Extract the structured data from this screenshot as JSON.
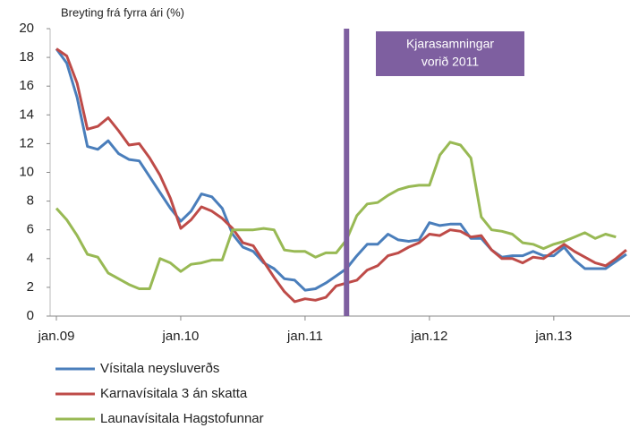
{
  "chart_data": {
    "type": "line",
    "title": "Breyting  frá fyrra ári (%)",
    "categories": [
      "jan.09",
      null,
      null,
      null,
      null,
      null,
      null,
      null,
      null,
      null,
      null,
      null,
      "jan.10",
      null,
      null,
      null,
      null,
      null,
      null,
      null,
      null,
      null,
      null,
      null,
      "jan.11",
      null,
      null,
      null,
      null,
      null,
      null,
      null,
      null,
      null,
      null,
      null,
      "jan.12",
      null,
      null,
      null,
      null,
      null,
      null,
      null,
      null,
      null,
      null,
      null,
      "jan.13",
      null,
      null,
      null,
      null,
      null,
      null,
      null
    ],
    "series": [
      {
        "name": "Vísitala neysluverðs",
        "color": "#4a7ebb",
        "values": [
          18.6,
          17.6,
          15.2,
          11.8,
          11.6,
          12.2,
          11.3,
          10.9,
          10.8,
          9.7,
          8.6,
          7.5,
          6.6,
          7.3,
          8.5,
          8.3,
          7.5,
          5.7,
          4.8,
          4.5,
          3.7,
          3.3,
          2.6,
          2.5,
          1.8,
          1.9,
          2.3,
          2.8,
          3.3,
          4.2,
          5.0,
          5.0,
          5.7,
          5.3,
          5.2,
          5.3,
          6.5,
          6.3,
          6.4,
          6.4,
          5.4,
          5.4,
          4.6,
          4.1,
          4.2,
          4.2,
          4.5,
          4.2,
          4.2,
          4.8,
          3.9,
          3.3,
          3.3,
          3.3,
          3.8,
          4.3
        ]
      },
      {
        "name": "Karnavísitala 3 án skatta",
        "color": "#be4b48",
        "values": [
          18.6,
          18.1,
          16.2,
          13.0,
          13.2,
          13.8,
          12.9,
          11.9,
          12.0,
          11.0,
          9.8,
          8.2,
          6.1,
          6.7,
          7.6,
          7.3,
          6.8,
          6.1,
          5.1,
          4.9,
          3.8,
          2.7,
          1.7,
          1.0,
          1.2,
          1.1,
          1.3,
          2.1,
          2.3,
          2.5,
          3.2,
          3.5,
          4.2,
          4.4,
          4.8,
          5.1,
          5.7,
          5.6,
          6.0,
          5.9,
          5.5,
          5.6,
          4.6,
          4.0,
          4.0,
          3.7,
          4.1,
          4.0,
          4.5,
          5.0,
          4.5,
          4.1,
          3.7,
          3.5,
          4.0,
          4.6
        ]
      },
      {
        "name": "Launavísitala Hagstofunnar",
        "color": "#98b954",
        "values": [
          7.5,
          6.7,
          5.6,
          4.3,
          4.1,
          3.0,
          2.6,
          2.2,
          1.9,
          1.9,
          4.0,
          3.7,
          3.1,
          3.6,
          3.7,
          3.9,
          3.9,
          6.0,
          6.0,
          6.0,
          6.1,
          6.0,
          4.6,
          4.5,
          4.5,
          4.1,
          4.4,
          4.4,
          5.3,
          7.0,
          7.8,
          7.9,
          8.4,
          8.8,
          9.0,
          9.1,
          9.1,
          11.2,
          12.1,
          11.9,
          11.0,
          6.9,
          6.0,
          5.9,
          5.7,
          5.1,
          5.0,
          4.7,
          5.0,
          5.2,
          5.5,
          5.8,
          5.4,
          5.7,
          5.5,
          null
        ]
      }
    ],
    "ylim": [
      0,
      20
    ],
    "yticks": [
      0,
      2,
      4,
      6,
      8,
      10,
      12,
      14,
      16,
      18,
      20
    ],
    "grid": false,
    "event": {
      "category_index": 28,
      "color": "#7e5fa0",
      "lines": [
        "Kjarasamningar",
        "vorið 2011"
      ]
    }
  }
}
